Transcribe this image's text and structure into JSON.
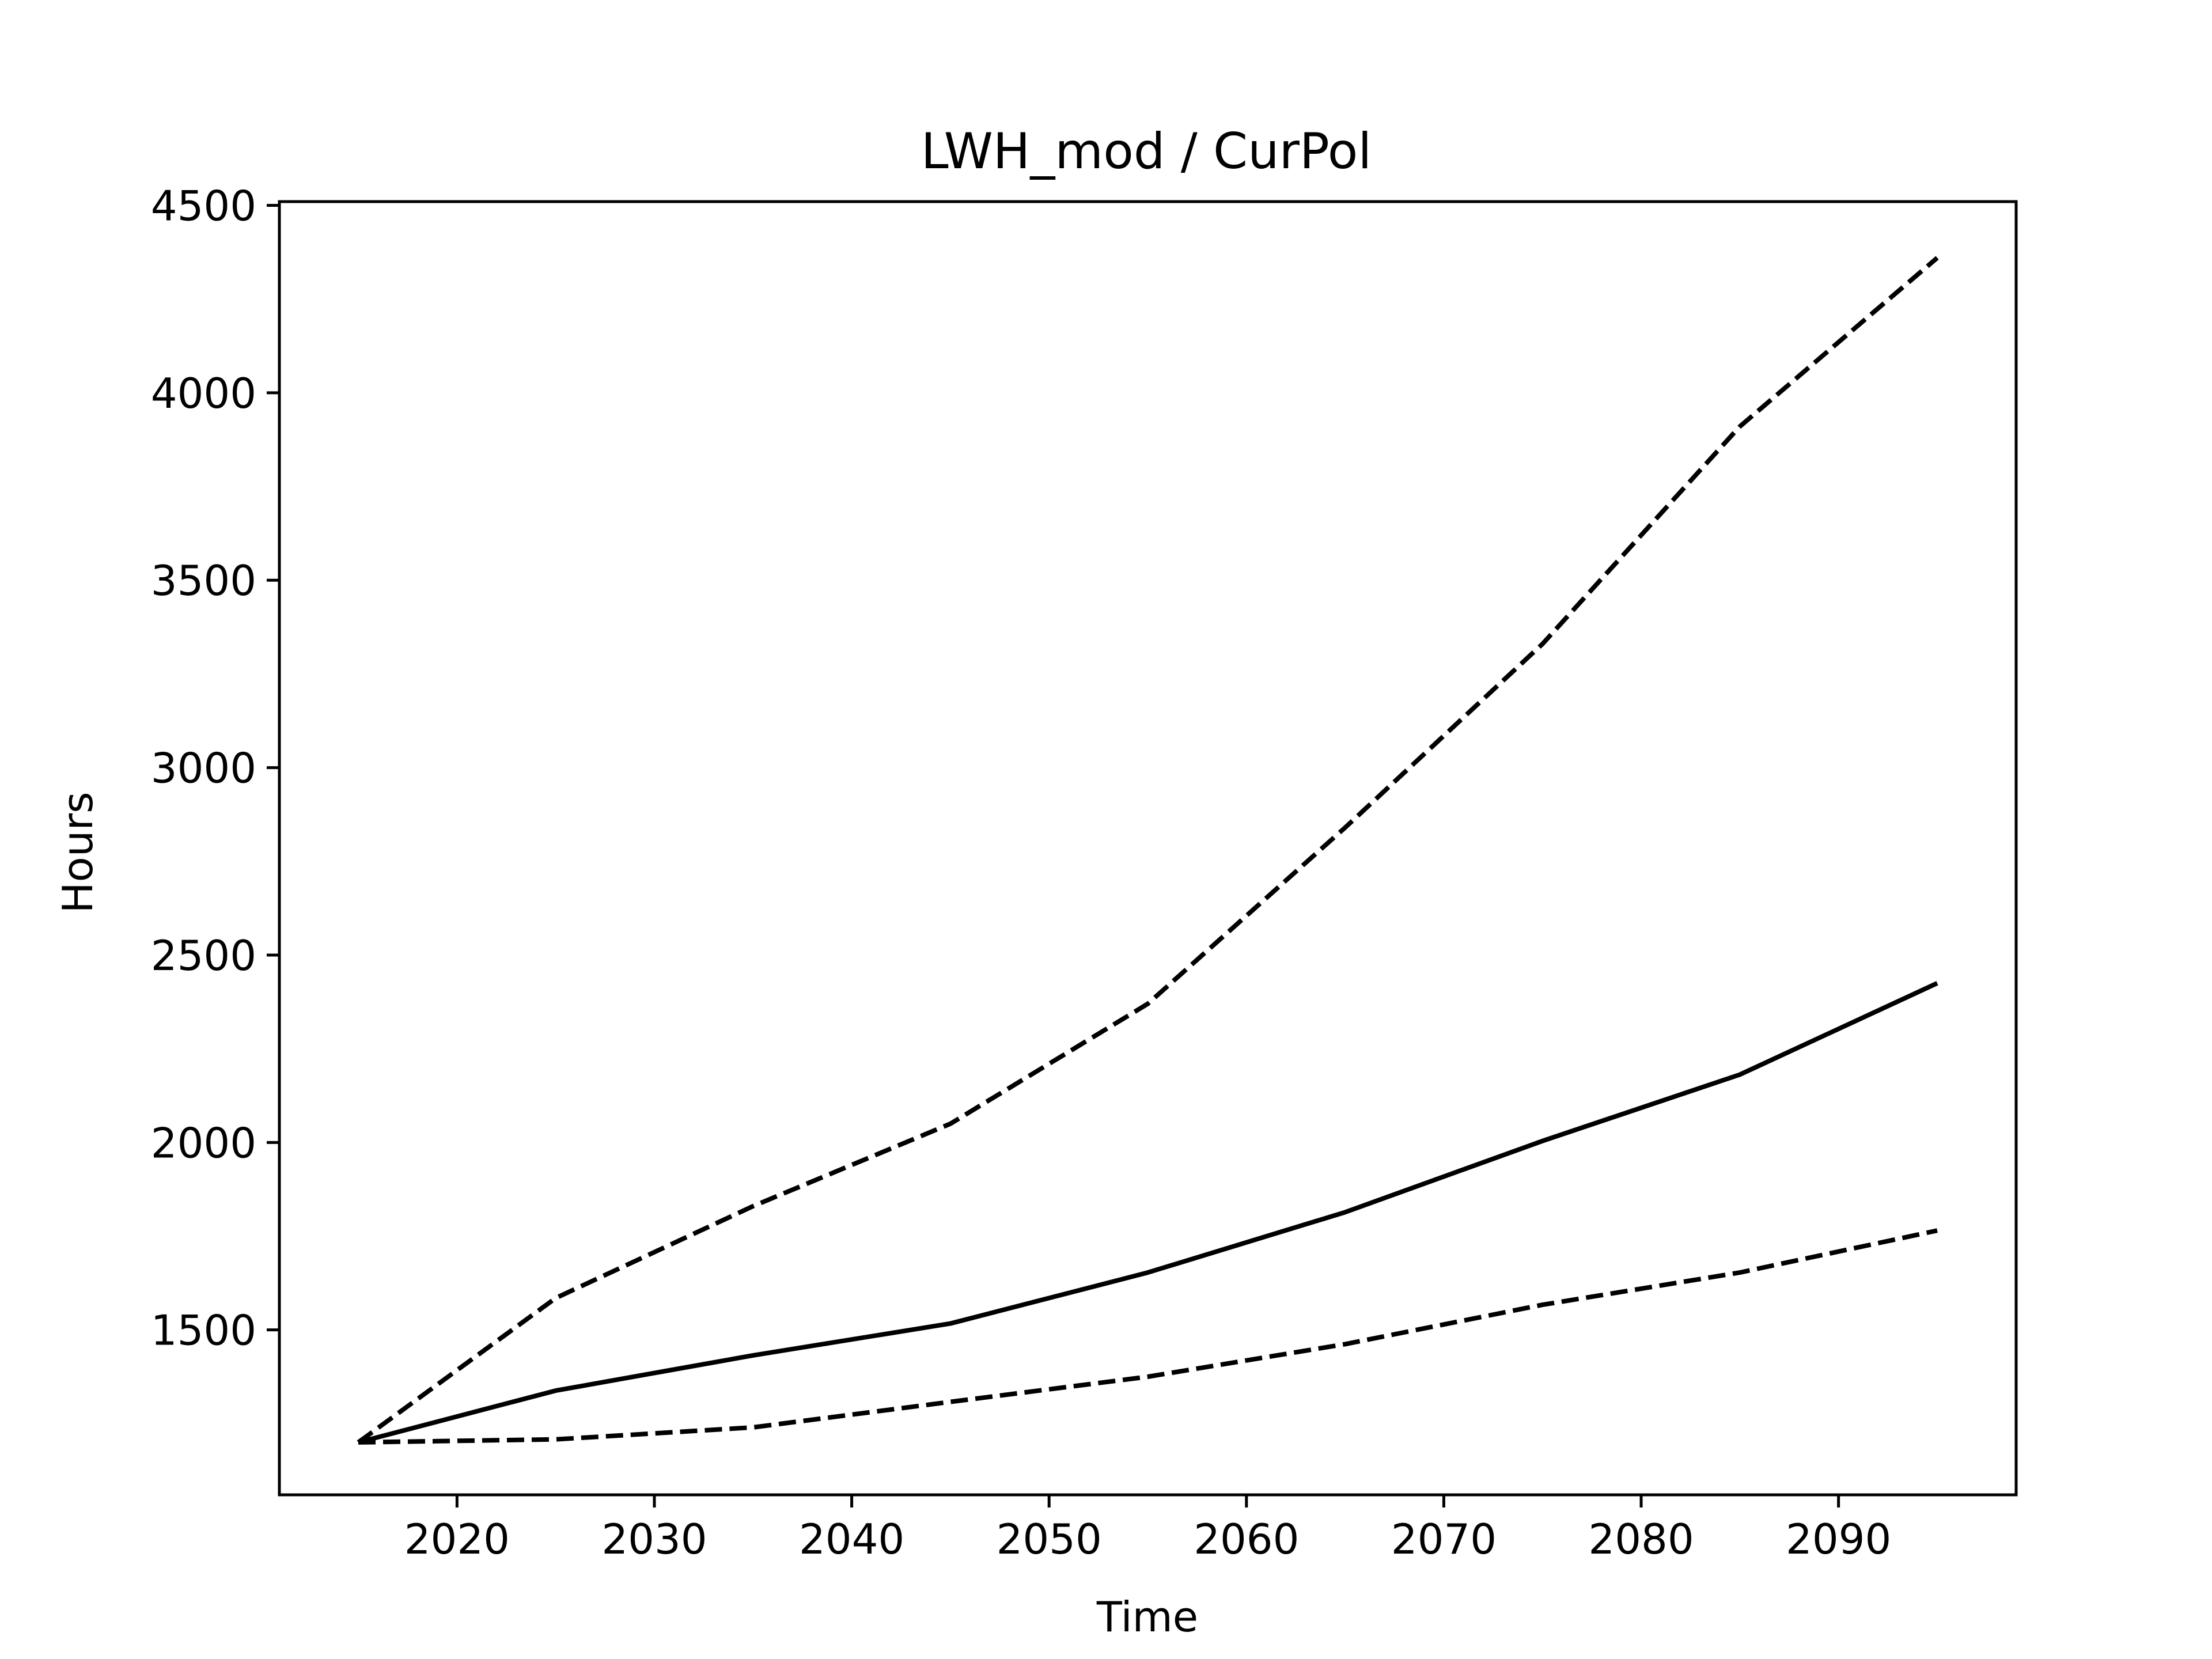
{
  "chart_data": {
    "type": "line",
    "title": "LWH_mod / CurPol",
    "xlabel": "Time",
    "ylabel": "Hours",
    "xlim": [
      2011,
      2099
    ],
    "ylim": [
      1060,
      4510
    ],
    "x_ticks": [
      2020,
      2030,
      2040,
      2050,
      2060,
      2070,
      2080,
      2090
    ],
    "y_ticks": [
      1500,
      2000,
      2500,
      3000,
      3500,
      4000,
      4500
    ],
    "grid": false,
    "x": [
      2015,
      2025,
      2035,
      2045,
      2055,
      2065,
      2075,
      2085,
      2095
    ],
    "series": [
      {
        "style": "dashed",
        "color": "#000000",
        "values": [
          1200,
          1585,
          1830,
          2050,
          2370,
          2840,
          3330,
          3910,
          4360
        ]
      },
      {
        "style": "solid",
        "color": "#000000",
        "values": [
          1200,
          1338,
          1432,
          1517,
          1653,
          1814,
          2004,
          2181,
          2425
        ]
      },
      {
        "style": "dashed",
        "color": "#000000",
        "values": [
          1200,
          1208,
          1240,
          1308,
          1375,
          1462,
          1567,
          1653,
          1765
        ]
      }
    ]
  }
}
